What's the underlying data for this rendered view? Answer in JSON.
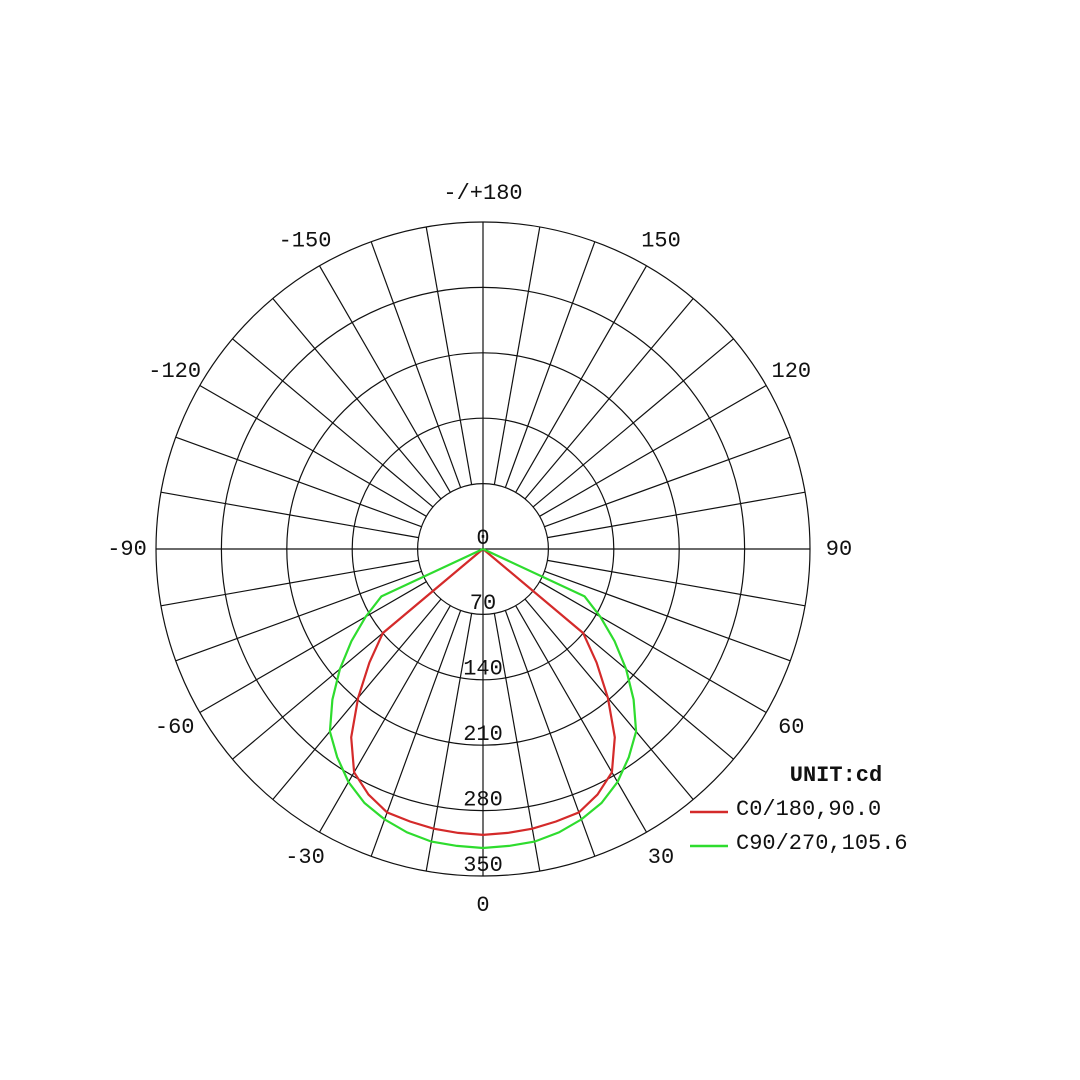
{
  "chart_data": {
    "type": "polar",
    "unit_label": "UNIT:cd",
    "rlim": [
      0,
      350
    ],
    "rticks": [
      0,
      70,
      140,
      210,
      280,
      350
    ],
    "angle_ticks": [
      0,
      30,
      60,
      90,
      120,
      150,
      {
        "value": 180,
        "label": "-/+180"
      },
      -150,
      -120,
      -90,
      -60,
      -30
    ],
    "x": [
      -90,
      -85,
      -80,
      -75,
      -70,
      -65,
      -60,
      -55,
      -50,
      -45,
      -40,
      -35,
      -30,
      -25,
      -20,
      -15,
      -10,
      -5,
      0,
      5,
      10,
      15,
      20,
      25,
      30,
      35,
      40,
      45,
      50,
      55,
      60,
      65,
      70,
      75,
      80,
      85,
      90
    ],
    "series": [
      {
        "name": "C0/180,90.0",
        "color": "#d42a2a",
        "values": [
          0,
          0,
          0,
          0,
          0,
          0,
          0,
          0,
          140,
          172,
          208,
          246,
          276,
          290,
          300,
          302,
          304,
          305,
          306,
          305,
          304,
          302,
          300,
          290,
          276,
          246,
          208,
          172,
          140,
          0,
          0,
          0,
          0,
          0,
          0,
          0,
          0
        ]
      },
      {
        "name": "C90/270,105.6",
        "color": "#2edc2e",
        "values": [
          0,
          0,
          0,
          0,
          0,
          120,
          145,
          172,
          200,
          228,
          255,
          272,
          288,
          300,
          308,
          314,
          318,
          319,
          320,
          319,
          318,
          314,
          308,
          300,
          288,
          272,
          255,
          228,
          200,
          172,
          145,
          120,
          0,
          0,
          0,
          0,
          0
        ]
      }
    ],
    "legend": "lower right"
  }
}
